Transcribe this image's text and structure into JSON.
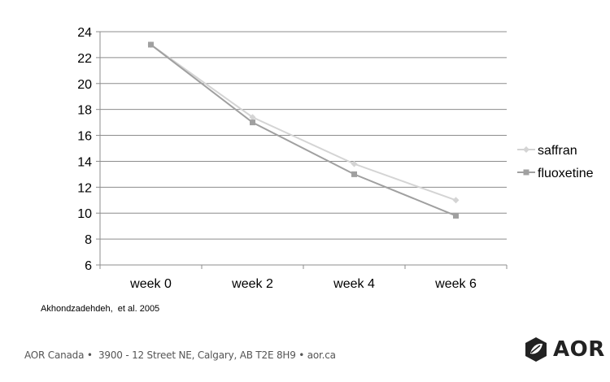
{
  "chart_data": {
    "type": "line",
    "categories": [
      "week 0",
      "week 2",
      "week 4",
      "week 6"
    ],
    "series": [
      {
        "name": "saffran",
        "values": [
          23,
          17.4,
          13.8,
          11
        ],
        "color": "#d4d4d4",
        "marker": "diamond"
      },
      {
        "name": "fluoxetine",
        "values": [
          23,
          17,
          13,
          9.8
        ],
        "color": "#a0a0a0",
        "marker": "square"
      }
    ],
    "ylim": [
      6,
      24
    ],
    "yticks": [
      "6",
      "8",
      "10",
      "12",
      "14",
      "16",
      "18",
      "20",
      "22",
      "24"
    ],
    "grid": true,
    "legend_position": "right",
    "title": "",
    "xlabel": "",
    "ylabel": ""
  },
  "citation": "Akhondzadehdeh,  et al. 2005",
  "footer": "AOR Canada •  3900 - 12 Street NE, Calgary, AB T2E 8H9 • aor.ca",
  "logo": {
    "text": "AOR",
    "icon": "aor-leaf-logo-icon"
  }
}
